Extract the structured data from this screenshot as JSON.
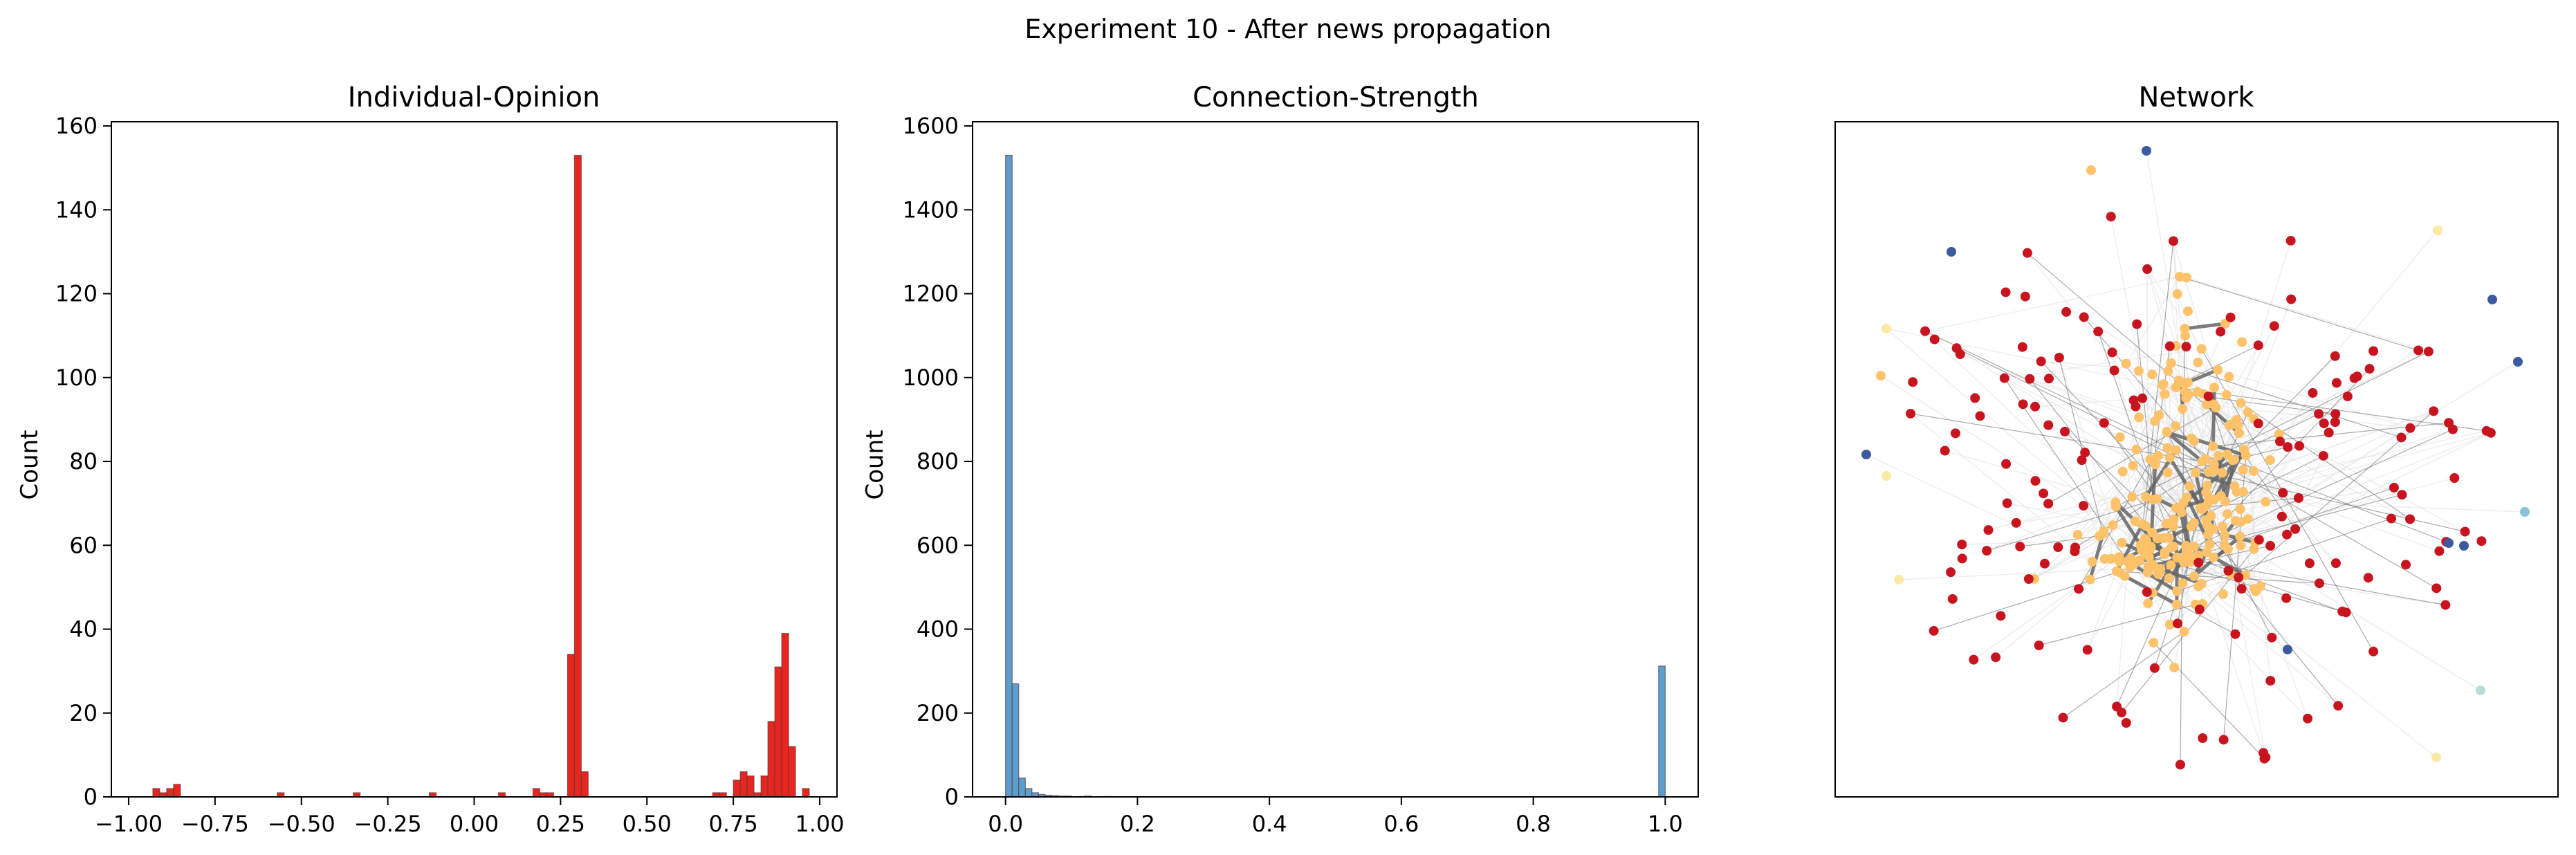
{
  "figure": {
    "suptitle": "Experiment 10 - After news propagation"
  },
  "chart_data": [
    {
      "type": "bar",
      "title": "Individual-Opinion",
      "xlabel": "",
      "ylabel": "Count",
      "xlim": [
        -1.05,
        1.05
      ],
      "ylim": [
        0,
        161
      ],
      "x_ticks": [
        -1.0,
        -0.75,
        -0.5,
        -0.25,
        0.0,
        0.25,
        0.5,
        0.75,
        1.0
      ],
      "x_tick_labels": [
        "−1.00",
        "−0.75",
        "−0.50",
        "−0.25",
        "0.00",
        "0.25",
        "0.50",
        "0.75",
        "1.00"
      ],
      "y_ticks": [
        0,
        20,
        40,
        60,
        80,
        100,
        120,
        140,
        160
      ],
      "y_tick_labels": [
        "0",
        "20",
        "40",
        "60",
        "80",
        "100",
        "120",
        "140",
        "160"
      ],
      "bar_color": "#e8261f",
      "bin_width": 0.0199,
      "bins": [
        {
          "x": -0.92,
          "count": 2
        },
        {
          "x": -0.9,
          "count": 1
        },
        {
          "x": -0.88,
          "count": 2
        },
        {
          "x": -0.86,
          "count": 3
        },
        {
          "x": -0.56,
          "count": 1
        },
        {
          "x": -0.34,
          "count": 1
        },
        {
          "x": -0.12,
          "count": 1
        },
        {
          "x": 0.08,
          "count": 1
        },
        {
          "x": 0.18,
          "count": 2
        },
        {
          "x": 0.2,
          "count": 1
        },
        {
          "x": 0.22,
          "count": 1
        },
        {
          "x": 0.28,
          "count": 34
        },
        {
          "x": 0.3,
          "count": 153
        },
        {
          "x": 0.32,
          "count": 6
        },
        {
          "x": 0.7,
          "count": 1
        },
        {
          "x": 0.72,
          "count": 1
        },
        {
          "x": 0.76,
          "count": 4
        },
        {
          "x": 0.78,
          "count": 6
        },
        {
          "x": 0.8,
          "count": 5
        },
        {
          "x": 0.82,
          "count": 1
        },
        {
          "x": 0.84,
          "count": 5
        },
        {
          "x": 0.86,
          "count": 18
        },
        {
          "x": 0.88,
          "count": 31
        },
        {
          "x": 0.9,
          "count": 39
        },
        {
          "x": 0.92,
          "count": 12
        },
        {
          "x": 0.96,
          "count": 2
        }
      ]
    },
    {
      "type": "bar",
      "title": "Connection-Strength",
      "xlabel": "",
      "ylabel": "Count",
      "xlim": [
        -0.05,
        1.05
      ],
      "ylim": [
        0,
        1610
      ],
      "x_ticks": [
        0.0,
        0.2,
        0.4,
        0.6,
        0.8,
        1.0
      ],
      "x_tick_labels": [
        "0.0",
        "0.2",
        "0.4",
        "0.6",
        "0.8",
        "1.0"
      ],
      "y_ticks": [
        0,
        200,
        400,
        600,
        800,
        1000,
        1200,
        1400,
        1600
      ],
      "y_tick_labels": [
        "0",
        "200",
        "400",
        "600",
        "800",
        "1000",
        "1200",
        "1400",
        "1600"
      ],
      "bar_color": "#5b9fd0",
      "bin_width": 0.01,
      "bins": [
        {
          "x": 0.005,
          "count": 1530
        },
        {
          "x": 0.015,
          "count": 270
        },
        {
          "x": 0.025,
          "count": 45
        },
        {
          "x": 0.035,
          "count": 20
        },
        {
          "x": 0.045,
          "count": 10
        },
        {
          "x": 0.055,
          "count": 6
        },
        {
          "x": 0.065,
          "count": 4
        },
        {
          "x": 0.075,
          "count": 3
        },
        {
          "x": 0.085,
          "count": 2
        },
        {
          "x": 0.095,
          "count": 2
        },
        {
          "x": 0.115,
          "count": 1
        },
        {
          "x": 0.125,
          "count": 2
        },
        {
          "x": 0.155,
          "count": 1
        },
        {
          "x": 0.995,
          "count": 312
        }
      ]
    },
    {
      "type": "scatter",
      "title": "Network",
      "xlabel": "",
      "ylabel": "",
      "grid": false,
      "node_colors": {
        "positive": "#c8141e",
        "neutral": "#fdc26a",
        "negative": "#3c5aa0",
        "pale": "#fbe9a6",
        "light-blue": "#8ac1d9",
        "light-teal": "#b8dcd6"
      },
      "edge_colors": {
        "strong": "#666666",
        "weak": "#e5e5e5"
      }
    }
  ]
}
